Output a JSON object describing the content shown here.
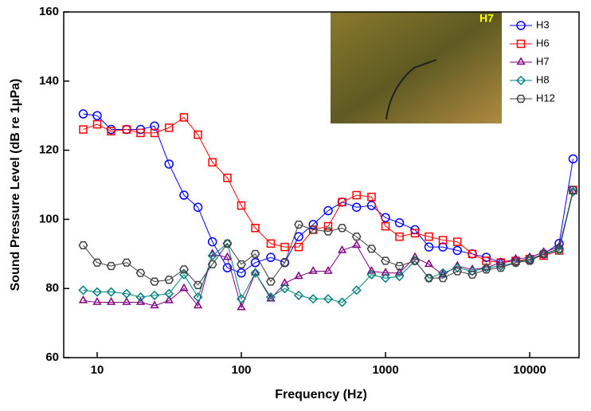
{
  "chart_data": {
    "type": "line",
    "xlabel": "Frequency (Hz)",
    "ylabel": "Sound Pressure Level (dB re 1μPa)",
    "inset_label": "H7",
    "log_x": true,
    "x": [
      8,
      10,
      12.5,
      16,
      20,
      25,
      31.5,
      40,
      50,
      63,
      80,
      100,
      125,
      160,
      200,
      250,
      315,
      400,
      500,
      630,
      800,
      1000,
      1250,
      1600,
      2000,
      2500,
      3150,
      4000,
      5000,
      6300,
      8000,
      10000,
      12500,
      16000,
      20000
    ],
    "series": [
      {
        "name": "H3",
        "color": "#0000ff",
        "marker": "circle",
        "values": [
          130.5,
          130,
          126,
          126,
          126,
          127,
          116,
          107,
          103.5,
          93.5,
          86,
          84.5,
          87.5,
          89,
          87.5,
          95,
          98.5,
          102.5,
          105,
          103.5,
          104,
          100.5,
          99,
          97,
          92,
          92,
          91,
          90,
          89,
          87.5,
          88,
          88.5,
          90,
          93,
          117.5
        ]
      },
      {
        "name": "H6",
        "color": "#ff0000",
        "marker": "square",
        "values": [
          126,
          127.5,
          125.5,
          126,
          125,
          125,
          126.5,
          129.5,
          124.5,
          116.5,
          112,
          104,
          97.5,
          93,
          92,
          92,
          97,
          98,
          105,
          107,
          106.5,
          98,
          95,
          96,
          95,
          94,
          93.5,
          90,
          88,
          87.5,
          88,
          88.5,
          89.5,
          91,
          108.5
        ]
      },
      {
        "name": "H7",
        "color": "#800080",
        "marker": "triangle",
        "values": [
          76.5,
          76,
          76,
          76,
          76,
          75,
          76.5,
          80,
          75,
          90,
          89,
          74.5,
          84.5,
          77,
          81.5,
          83.5,
          85,
          85,
          91,
          92.5,
          85,
          84.5,
          84.5,
          89,
          87,
          84,
          86.5,
          85.5,
          86,
          87.5,
          88.5,
          89,
          90.5,
          92,
          108
        ]
      },
      {
        "name": "H8",
        "color": "#008080",
        "marker": "diamond",
        "values": [
          79.5,
          79,
          79,
          78.5,
          77.5,
          78,
          78.5,
          84,
          77.5,
          89.5,
          93,
          77,
          84.5,
          77.5,
          80,
          78,
          77,
          77,
          76,
          79.5,
          84,
          83,
          83.5,
          88,
          83,
          84.5,
          86,
          85,
          86,
          86.5,
          87.5,
          88.5,
          90,
          91,
          108
        ]
      },
      {
        "name": "H12",
        "color": "#404040",
        "marker": "hexagon",
        "values": [
          92.5,
          87.5,
          86.5,
          87.5,
          84.5,
          82,
          82.5,
          85.5,
          81,
          87,
          93,
          87,
          90,
          82,
          87.5,
          98.5,
          97,
          96.5,
          97.5,
          95,
          91.5,
          88,
          86.5,
          88,
          83,
          83,
          85,
          84,
          85.5,
          86,
          87.5,
          88,
          90,
          91.5,
          108.5
        ]
      }
    ],
    "xlim": [
      5.86,
      22000
    ],
    "xticks": [
      10,
      100,
      1000,
      10000
    ],
    "ylim": [
      60,
      160
    ],
    "yticks": [
      60,
      80,
      100,
      120,
      140,
      160
    ],
    "legend": "upper right"
  }
}
